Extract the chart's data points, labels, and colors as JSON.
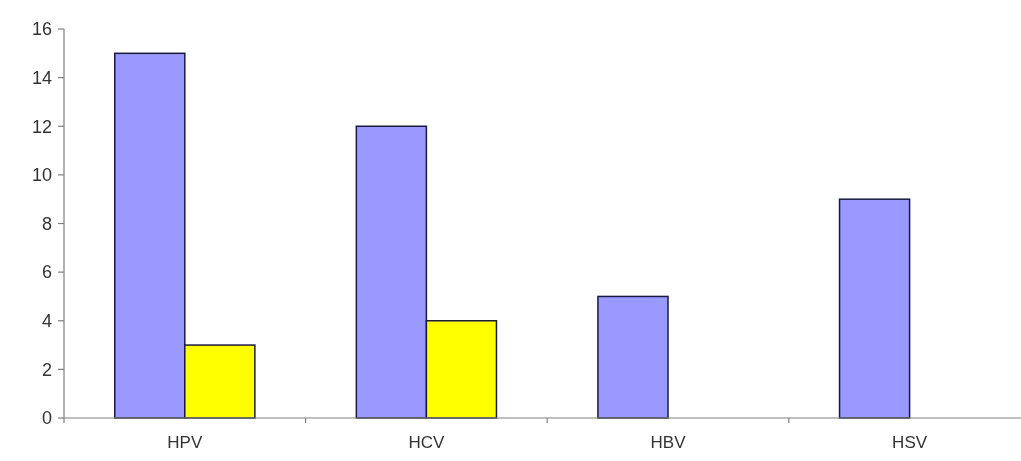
{
  "chart_data": {
    "type": "bar",
    "categories": [
      "HPV",
      "HCV",
      "HBV",
      "HSV"
    ],
    "series": [
      {
        "color": "#9999ff",
        "values": [
          15,
          12,
          5,
          9
        ]
      },
      {
        "color": "#ffff00",
        "values": [
          3,
          4,
          null,
          null
        ]
      }
    ],
    "ylim": [
      0,
      16
    ],
    "yticks": [
      0,
      2,
      4,
      6,
      8,
      10,
      12,
      14,
      16
    ],
    "grid": false
  }
}
